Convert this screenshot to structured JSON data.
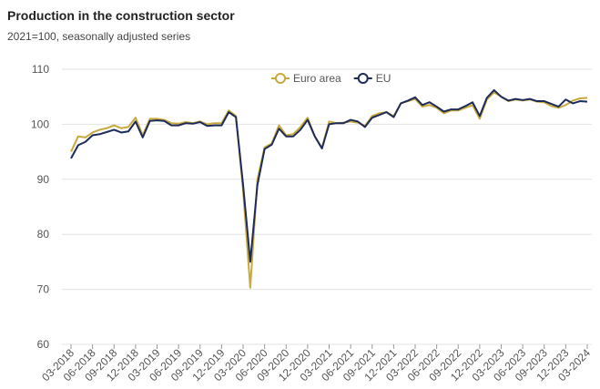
{
  "chart_data": {
    "type": "line",
    "title": "Production in the construction sector",
    "subtitle": "2021=100, seasonally adjusted series",
    "categories": [
      "03-2018",
      null,
      null,
      "06-2018",
      null,
      null,
      "09-2018",
      null,
      null,
      "12-2018",
      null,
      null,
      "03-2019",
      null,
      null,
      "06-2019",
      null,
      null,
      "09-2019",
      null,
      null,
      "12-2019",
      null,
      null,
      "03-2020",
      null,
      null,
      "06-2020",
      null,
      null,
      "09-2020",
      null,
      null,
      "12-2020",
      null,
      null,
      "03-2021",
      null,
      null,
      "06-2021",
      null,
      null,
      "09-2021",
      null,
      null,
      "12-2021",
      null,
      null,
      "03-2022",
      null,
      null,
      "06-2022",
      null,
      null,
      "09-2022",
      null,
      null,
      "12-2022",
      null,
      null,
      "03-2023",
      null,
      null,
      "06-2023",
      null,
      null,
      "09-2023",
      null,
      null,
      "12-2023",
      null,
      null,
      "03-2024"
    ],
    "series": [
      {
        "name": "Euro area",
        "color": "#c9a83c",
        "values": [
          95,
          97.8,
          97.6,
          98.5,
          99,
          99.3,
          99.8,
          99.3,
          99.5,
          101.2,
          98,
          101,
          101,
          100.8,
          100.2,
          100.1,
          100.4,
          100.2,
          100.5,
          100,
          100.2,
          100.2,
          102.5,
          101.5,
          88,
          70.3,
          90,
          95.8,
          96.5,
          99.8,
          98,
          98.2,
          99.5,
          101.2,
          97.8,
          95.7,
          100.5,
          100.2,
          100.3,
          100.5,
          100.3,
          99.7,
          101.5,
          102,
          102.2,
          101.5,
          103.8,
          104.2,
          104.6,
          103.2,
          103.5,
          103,
          102,
          102.5,
          102.5,
          103,
          103.5,
          101,
          104.5,
          105.8,
          105,
          104.2,
          104.5,
          104.3,
          104.5,
          104.1,
          104,
          103.3,
          103,
          103.5,
          104.3,
          104.7,
          104.8
        ]
      },
      {
        "name": "EU",
        "color": "#1c2b5a",
        "values": [
          93.8,
          96.2,
          96.8,
          98,
          98.2,
          98.6,
          99,
          98.5,
          98.7,
          100.5,
          97.6,
          100.6,
          100.7,
          100.6,
          99.8,
          99.8,
          100.2,
          100.1,
          100.4,
          99.7,
          99.8,
          99.8,
          102.2,
          101.3,
          89,
          75,
          89,
          95.5,
          96.3,
          99.2,
          97.8,
          97.8,
          99,
          100.8,
          97.8,
          95.6,
          100,
          100.2,
          100.2,
          100.8,
          100.5,
          99.5,
          101.2,
          101.7,
          102.2,
          101.3,
          103.8,
          104.3,
          104.9,
          103.5,
          104,
          103.2,
          102.3,
          102.7,
          102.7,
          103.3,
          104,
          101.5,
          104.8,
          106.2,
          105,
          104.3,
          104.6,
          104.4,
          104.6,
          104.2,
          104.2,
          103.7,
          103.2,
          104.5,
          103.8,
          104.2,
          104.1
        ]
      }
    ],
    "ylim": [
      60,
      110
    ],
    "yticks": [
      60,
      70,
      80,
      90,
      100,
      110
    ],
    "grid": true,
    "legend": "top"
  }
}
